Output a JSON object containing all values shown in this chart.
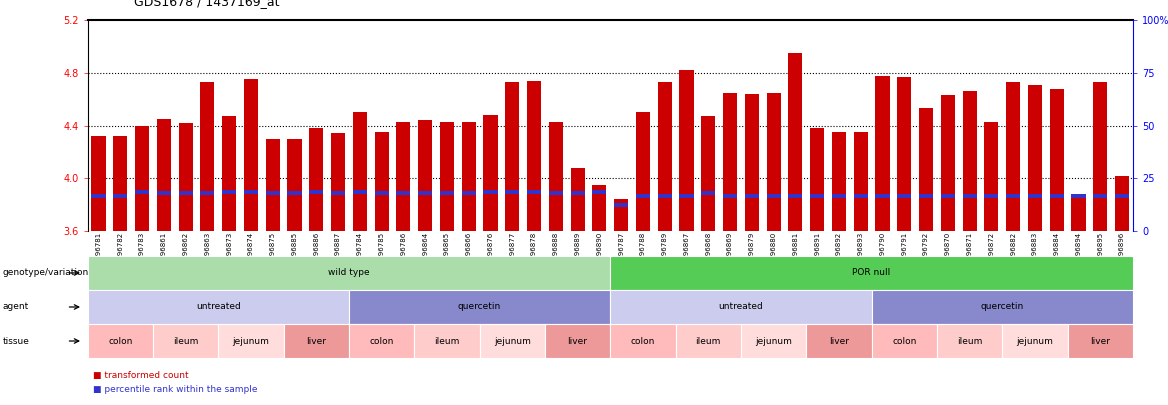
{
  "title": "GDS1678 / 1437169_at",
  "samples": [
    "GSM96781",
    "GSM96782",
    "GSM96783",
    "GSM96861",
    "GSM96862",
    "GSM96863",
    "GSM96873",
    "GSM96874",
    "GSM96875",
    "GSM96885",
    "GSM96886",
    "GSM96887",
    "GSM96784",
    "GSM96785",
    "GSM96786",
    "GSM96864",
    "GSM96865",
    "GSM96866",
    "GSM96876",
    "GSM96877",
    "GSM96878",
    "GSM96888",
    "GSM96889",
    "GSM96890",
    "GSM96787",
    "GSM96788",
    "GSM96789",
    "GSM96867",
    "GSM96868",
    "GSM96869",
    "GSM96879",
    "GSM96880",
    "GSM96881",
    "GSM96891",
    "GSM96892",
    "GSM96893",
    "GSM96790",
    "GSM96791",
    "GSM96792",
    "GSM96870",
    "GSM96871",
    "GSM96872",
    "GSM96882",
    "GSM96883",
    "GSM96884",
    "GSM96894",
    "GSM96895",
    "GSM96896"
  ],
  "bar_values": [
    4.32,
    4.32,
    4.4,
    4.45,
    4.42,
    4.73,
    4.47,
    4.75,
    4.3,
    4.3,
    4.38,
    4.34,
    4.5,
    4.35,
    4.43,
    4.44,
    4.43,
    4.43,
    4.48,
    4.73,
    4.74,
    4.43,
    4.08,
    3.95,
    3.84,
    4.5,
    4.73,
    4.82,
    4.47,
    4.65,
    4.64,
    4.65,
    4.95,
    4.38,
    4.35,
    4.35,
    4.78,
    4.77,
    4.53,
    4.63,
    4.66,
    4.43,
    4.73,
    4.71,
    4.68,
    3.88,
    4.73,
    4.02
  ],
  "percentile_values": [
    3.85,
    3.85,
    3.88,
    3.87,
    3.87,
    3.87,
    3.88,
    3.88,
    3.87,
    3.87,
    3.88,
    3.87,
    3.88,
    3.87,
    3.87,
    3.87,
    3.87,
    3.87,
    3.88,
    3.88,
    3.88,
    3.87,
    3.87,
    3.88,
    3.78,
    3.85,
    3.85,
    3.85,
    3.87,
    3.85,
    3.85,
    3.85,
    3.85,
    3.85,
    3.85,
    3.85,
    3.85,
    3.85,
    3.85,
    3.85,
    3.85,
    3.85,
    3.85,
    3.85,
    3.85,
    3.85,
    3.85,
    3.85
  ],
  "ymin": 3.6,
  "ymax": 5.2,
  "yticks": [
    3.6,
    4.0,
    4.4,
    4.8,
    5.2
  ],
  "ytick_labels": [
    "3.6",
    "4.0",
    "4.4",
    "4.8",
    "5.2"
  ],
  "dotted_lines": [
    4.0,
    4.4,
    4.8
  ],
  "right_ytick_percents": [
    0,
    25,
    50,
    75,
    100
  ],
  "right_ytick_labels": [
    "0",
    "25",
    "50",
    "75",
    "100%"
  ],
  "bar_color": "#cc0000",
  "percentile_color": "#3333cc",
  "bar_width": 0.65,
  "title_fontsize": 9,
  "genotype_groups": [
    {
      "text": "wild type",
      "start": 0,
      "end": 23,
      "color": "#aaddaa"
    },
    {
      "text": "POR null",
      "start": 24,
      "end": 47,
      "color": "#55cc55"
    }
  ],
  "agent_groups": [
    {
      "text": "untreated",
      "start": 0,
      "end": 11,
      "color": "#ccccee"
    },
    {
      "text": "quercetin",
      "start": 12,
      "end": 23,
      "color": "#8888cc"
    },
    {
      "text": "untreated",
      "start": 24,
      "end": 35,
      "color": "#ccccee"
    },
    {
      "text": "quercetin",
      "start": 36,
      "end": 47,
      "color": "#8888cc"
    }
  ],
  "tissue_groups": [
    {
      "text": "colon",
      "start": 0,
      "end": 2,
      "color": "#ffbbbb"
    },
    {
      "text": "ileum",
      "start": 3,
      "end": 5,
      "color": "#ffcccc"
    },
    {
      "text": "jejunum",
      "start": 6,
      "end": 8,
      "color": "#ffdddd"
    },
    {
      "text": "liver",
      "start": 9,
      "end": 11,
      "color": "#ee9999"
    },
    {
      "text": "colon",
      "start": 12,
      "end": 14,
      "color": "#ffbbbb"
    },
    {
      "text": "ileum",
      "start": 15,
      "end": 17,
      "color": "#ffcccc"
    },
    {
      "text": "jejunum",
      "start": 18,
      "end": 20,
      "color": "#ffdddd"
    },
    {
      "text": "liver",
      "start": 21,
      "end": 23,
      "color": "#ee9999"
    },
    {
      "text": "colon",
      "start": 24,
      "end": 26,
      "color": "#ffbbbb"
    },
    {
      "text": "ileum",
      "start": 27,
      "end": 29,
      "color": "#ffcccc"
    },
    {
      "text": "jejunum",
      "start": 30,
      "end": 32,
      "color": "#ffdddd"
    },
    {
      "text": "liver",
      "start": 33,
      "end": 35,
      "color": "#ee9999"
    },
    {
      "text": "colon",
      "start": 36,
      "end": 38,
      "color": "#ffbbbb"
    },
    {
      "text": "ileum",
      "start": 39,
      "end": 41,
      "color": "#ffcccc"
    },
    {
      "text": "jejunum",
      "start": 42,
      "end": 44,
      "color": "#ffdddd"
    },
    {
      "text": "liver",
      "start": 45,
      "end": 47,
      "color": "#ee9999"
    }
  ]
}
